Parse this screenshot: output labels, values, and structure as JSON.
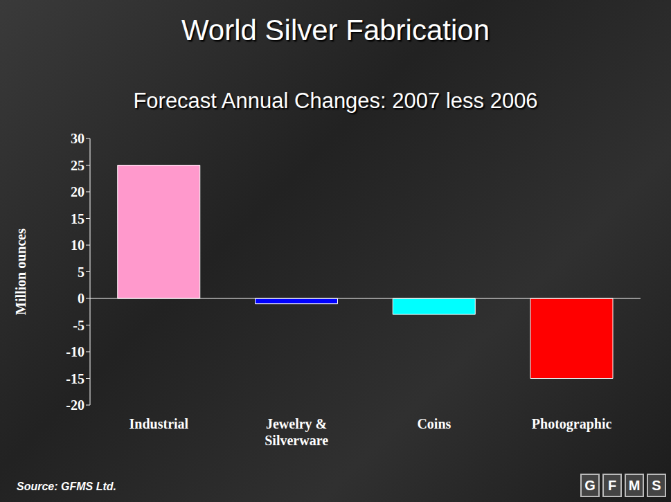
{
  "chart_data": {
    "type": "bar",
    "title": "World Silver Fabrication",
    "subtitle": "Forecast Annual Changes: 2007 less 2006",
    "ylabel": "Million ounces",
    "categories": [
      "Industrial",
      "Jewelry & Silverware",
      "Coins",
      "Photographic"
    ],
    "values": [
      25,
      -1,
      -3,
      -15
    ],
    "colors": [
      "#ff99cc",
      "#0000ff",
      "#00ffff",
      "#ff0000"
    ],
    "ylim": [
      -20,
      30
    ],
    "yticks": [
      -20,
      -15,
      -10,
      -5,
      0,
      5,
      10,
      15,
      20,
      25,
      30
    ],
    "grid": false,
    "source": "Source: GFMS Ltd.",
    "logo": "GFMS"
  }
}
